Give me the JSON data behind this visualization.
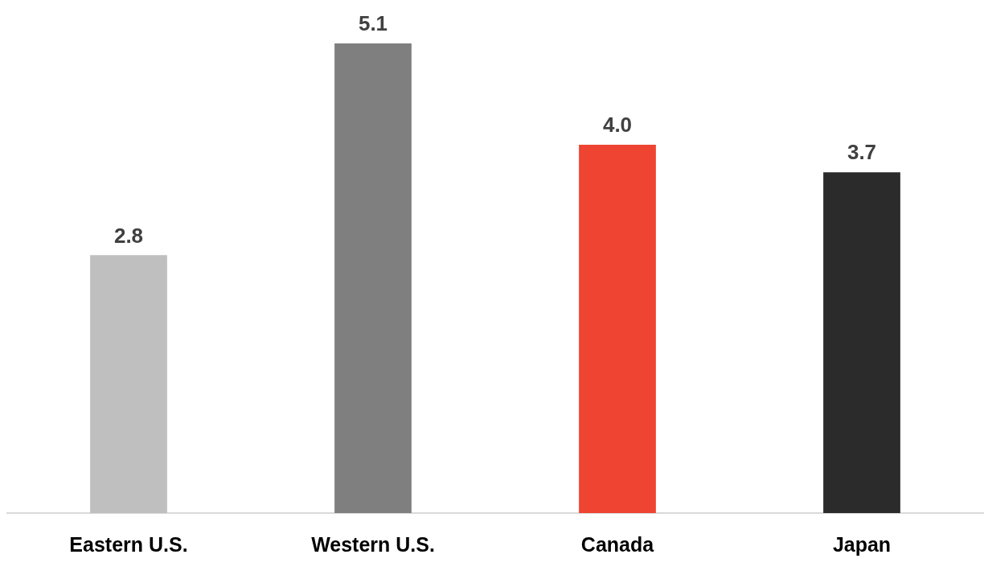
{
  "chart_data": {
    "type": "bar",
    "categories": [
      "Eastern U.S.",
      "Western U.S.",
      "Canada",
      "Japan"
    ],
    "values": [
      2.8,
      5.1,
      4.0,
      3.7
    ],
    "colors": [
      "#bfbfbf",
      "#7f7f7f",
      "#ee4431",
      "#2b2b2b"
    ],
    "value_labels": [
      "2.8",
      "5.1",
      "4.0",
      "3.7"
    ]
  }
}
